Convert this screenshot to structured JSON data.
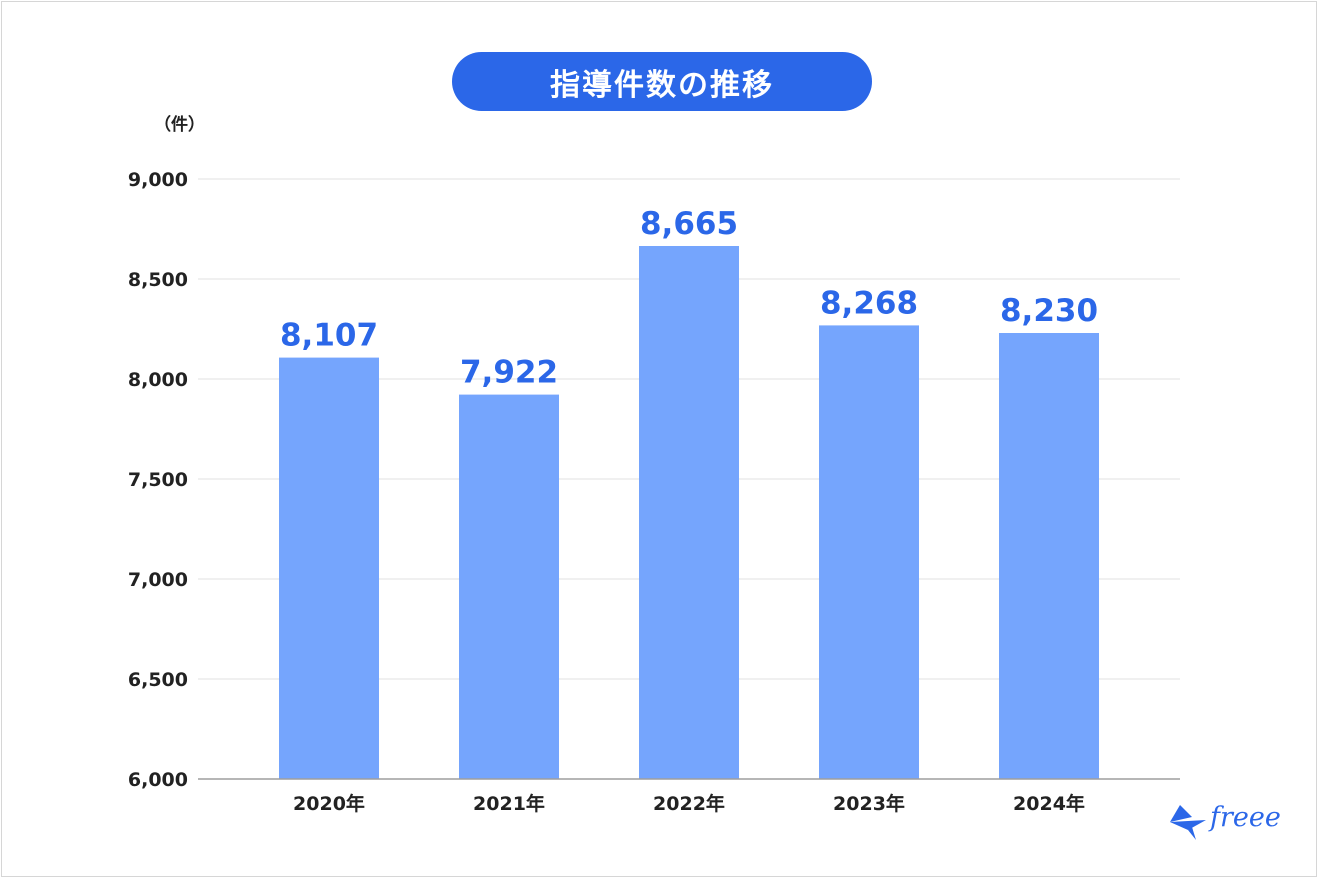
{
  "chart_data": {
    "type": "bar",
    "title": "指導件数の推移",
    "unit": "（件）",
    "categories": [
      "2020年",
      "2021年",
      "2022年",
      "2023年",
      "2024年"
    ],
    "values": [
      8107,
      7922,
      8665,
      8268,
      8230
    ],
    "value_labels": [
      "8,107",
      "7,922",
      "8,665",
      "8,268",
      "8,230"
    ],
    "ylim": [
      6000,
      9000
    ],
    "yticks": [
      6000,
      6500,
      7000,
      7500,
      8000,
      8500,
      9000
    ],
    "ytick_labels": [
      "6,000",
      "6,500",
      "7,000",
      "7,500",
      "8,000",
      "8,500",
      "9,000"
    ],
    "grid": true,
    "colors": {
      "bar": "#75a5fd",
      "label": "#2b67e8",
      "title_bg": "#2b67e8"
    }
  },
  "logo": {
    "text": "freee"
  }
}
